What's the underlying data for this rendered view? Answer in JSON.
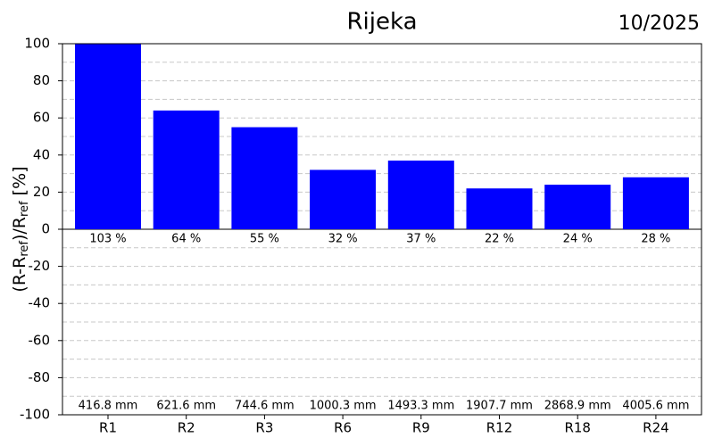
{
  "chart_data": {
    "type": "bar",
    "title": "Rijeka",
    "date": "10/2025",
    "ylabel_parts": [
      "(R-R",
      "ref",
      ")/R",
      "ref",
      " [%]"
    ],
    "categories": [
      "R1",
      "R2",
      "R3",
      "R6",
      "R9",
      "R12",
      "R18",
      "R24"
    ],
    "values": [
      103,
      64,
      55,
      32,
      37,
      22,
      24,
      28
    ],
    "value_labels": [
      "103 %",
      "64 %",
      "55 %",
      "32 %",
      "37 %",
      "22 %",
      "24 %",
      "28 %"
    ],
    "annotations": [
      "416.8 mm",
      "621.6 mm",
      "744.6 mm",
      "1000.3 mm",
      "1493.3 mm",
      "1907.7 mm",
      "2868.9 mm",
      "4005.6 mm"
    ],
    "color": "#0000ff",
    "ylim": [
      -100,
      100
    ],
    "yticks": [
      -100,
      -80,
      -60,
      -40,
      -20,
      0,
      20,
      40,
      60,
      80,
      100
    ],
    "minor_yticks": [
      -90,
      -70,
      -50,
      -30,
      -10,
      10,
      30,
      50,
      70,
      90
    ],
    "grid": true
  }
}
